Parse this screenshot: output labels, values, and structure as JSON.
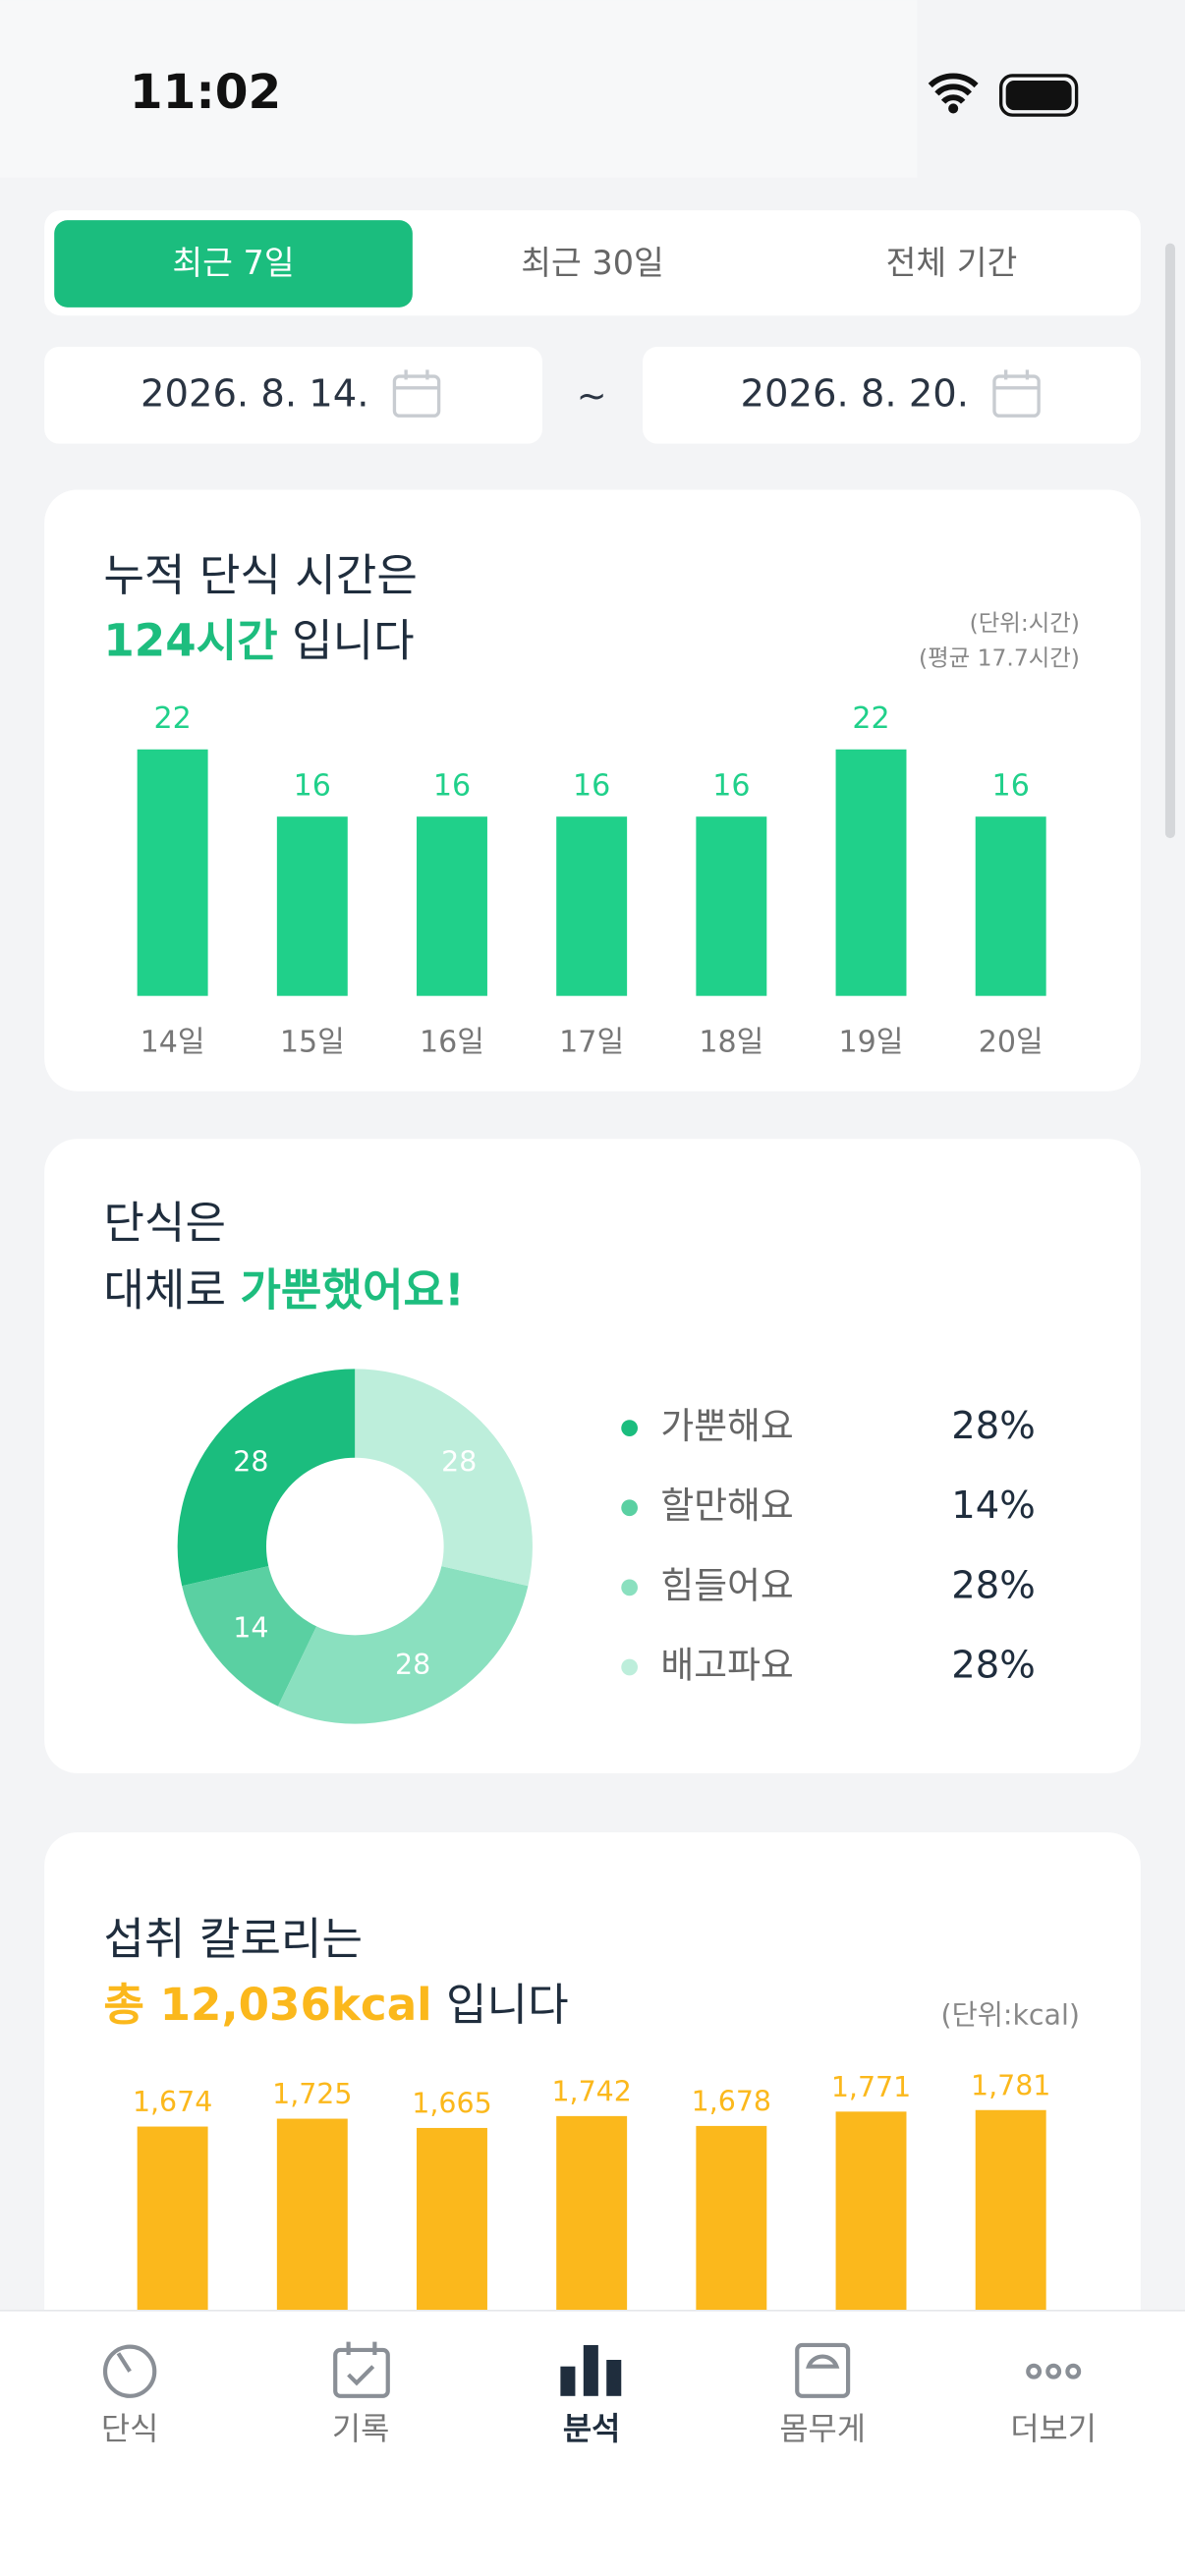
{
  "status_bar": {
    "time": "11:02"
  },
  "period_tabs": {
    "options": [
      "최근 7일",
      "최근 30일",
      "전체 기간"
    ],
    "selected": 0
  },
  "date_range": {
    "start": "2026. 8. 14.",
    "separator": "~",
    "end": "2026. 8. 20."
  },
  "fasting_time": {
    "title_line1": "누적 단식 시간은",
    "highlight": "124시간",
    "title_suffix": "입니다",
    "unit_note": "(단위:시간)",
    "average_note": "(평균 17.7시간)",
    "chart": {
      "type": "bar",
      "categories": [
        "14일",
        "15일",
        "16일",
        "17일",
        "18일",
        "19일",
        "20일"
      ],
      "values": [
        22,
        16,
        16,
        16,
        16,
        22,
        16
      ],
      "color": "#20d08a",
      "ylim": [
        0,
        22
      ]
    }
  },
  "mood": {
    "title_line1": "단식은",
    "title_prefix": "대체로",
    "highlight": "가뿐했어요!",
    "chart": {
      "type": "pie",
      "categories": [
        "가뿐해요",
        "할만해요",
        "힘들어요",
        "배고파요"
      ],
      "values": [
        28,
        14,
        28,
        28
      ],
      "value_labels": [
        "28%",
        "14%",
        "28%",
        "28%"
      ],
      "colors": [
        "#1bbd7e",
        "#5ad0a2",
        "#8ae0bf",
        "#bdeedb"
      ]
    }
  },
  "calories": {
    "title_line1": "섭취 칼로리는",
    "highlight": "총 12,036kcal",
    "title_suffix": "입니다",
    "unit_note": "(단위:kcal)",
    "chart": {
      "type": "bar",
      "values": [
        1674,
        1725,
        1665,
        1742,
        1678,
        1771,
        1781
      ],
      "value_labels": [
        "1,674",
        "1,725",
        "1,665",
        "1,742",
        "1,678",
        "1,771",
        "1,781"
      ],
      "color": "#fbb81c",
      "ylim": [
        0,
        1781
      ]
    }
  },
  "bottom_nav": {
    "items": [
      "단식",
      "기록",
      "분석",
      "몸무게",
      "더보기"
    ],
    "selected": 2
  }
}
